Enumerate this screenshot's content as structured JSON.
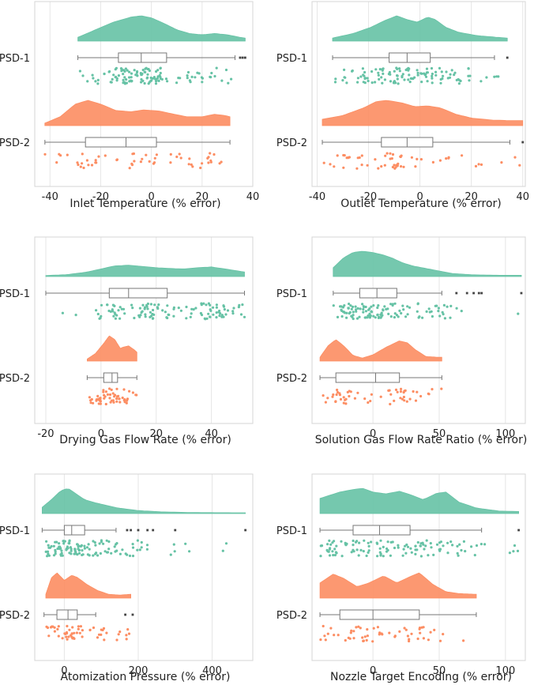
{
  "figure": {
    "colors": {
      "psd1": "#66c2a5",
      "psd2": "#fc8d62",
      "grid": "#e6e6e6",
      "frame": "#d5d5d5",
      "box": "#777777"
    }
  },
  "chart_data": [
    {
      "type": "raincloud",
      "xlabel": "Inlet Temperature (% error)",
      "xlim": [
        -46,
        40
      ],
      "xticks": [
        -40,
        -20,
        0,
        20,
        40
      ],
      "categories": [
        "PSD-1",
        "PSD-2"
      ],
      "series": [
        {
          "name": "PSD-1",
          "min": -29,
          "q1": -13,
          "median": -4,
          "q3": 6,
          "max": 33,
          "outliers": [
            35,
            36,
            37
          ],
          "density": [
            [
              -29,
              0.15
            ],
            [
              -22,
              0.45
            ],
            [
              -15,
              0.75
            ],
            [
              -8,
              0.95
            ],
            [
              -4,
              1.0
            ],
            [
              0,
              0.92
            ],
            [
              5,
              0.7
            ],
            [
              10,
              0.45
            ],
            [
              15,
              0.3
            ],
            [
              20,
              0.25
            ],
            [
              25,
              0.3
            ],
            [
              30,
              0.25
            ],
            [
              35,
              0.15
            ],
            [
              37,
              0.12
            ]
          ]
        },
        {
          "name": "PSD-2",
          "min": -42,
          "q1": -26,
          "median": -10,
          "q3": 2,
          "max": 31,
          "outliers": [],
          "density": [
            [
              -42,
              0.1
            ],
            [
              -36,
              0.35
            ],
            [
              -30,
              0.85
            ],
            [
              -25,
              1.0
            ],
            [
              -20,
              0.85
            ],
            [
              -14,
              0.6
            ],
            [
              -8,
              0.55
            ],
            [
              -3,
              0.62
            ],
            [
              3,
              0.58
            ],
            [
              9,
              0.45
            ],
            [
              14,
              0.35
            ],
            [
              20,
              0.35
            ],
            [
              25,
              0.45
            ],
            [
              29,
              0.4
            ],
            [
              31,
              0.35
            ]
          ]
        }
      ]
    },
    {
      "type": "raincloud",
      "xlabel": "Outlet Temperature (% error)",
      "xlim": [
        -42,
        41
      ],
      "xticks": [
        -40,
        -20,
        0,
        20,
        40
      ],
      "categories": [
        "PSD-1",
        "PSD-2"
      ],
      "series": [
        {
          "name": "PSD-1",
          "min": -34,
          "q1": -12,
          "median": -5,
          "q3": 4,
          "max": 29,
          "outliers": [
            34
          ],
          "density": [
            [
              -34,
              0.12
            ],
            [
              -26,
              0.3
            ],
            [
              -19,
              0.55
            ],
            [
              -14,
              0.8
            ],
            [
              -9,
              1.0
            ],
            [
              -5,
              0.85
            ],
            [
              -1,
              0.75
            ],
            [
              3,
              0.95
            ],
            [
              6,
              0.85
            ],
            [
              10,
              0.55
            ],
            [
              15,
              0.35
            ],
            [
              22,
              0.22
            ],
            [
              30,
              0.15
            ],
            [
              34,
              0.12
            ]
          ]
        },
        {
          "name": "PSD-2",
          "min": -38,
          "q1": -15,
          "median": -5,
          "q3": 5,
          "max": 35,
          "outliers": [
            40
          ],
          "density": [
            [
              -38,
              0.25
            ],
            [
              -30,
              0.4
            ],
            [
              -22,
              0.7
            ],
            [
              -17,
              0.95
            ],
            [
              -13,
              1.0
            ],
            [
              -7,
              0.9
            ],
            [
              -2,
              0.75
            ],
            [
              3,
              0.78
            ],
            [
              8,
              0.7
            ],
            [
              14,
              0.45
            ],
            [
              20,
              0.3
            ],
            [
              28,
              0.22
            ],
            [
              35,
              0.2
            ],
            [
              40,
              0.2
            ]
          ]
        }
      ]
    },
    {
      "type": "raincloud",
      "xlabel": "Drying Gas Flow Rate (% error)",
      "xlim": [
        -24,
        55
      ],
      "xticks": [
        -20,
        0,
        20,
        40
      ],
      "categories": [
        "PSD-1",
        "PSD-2"
      ],
      "series": [
        {
          "name": "PSD-1",
          "min": -20,
          "q1": 3,
          "median": 10,
          "q3": 24,
          "max": 52,
          "outliers": [],
          "density": [
            [
              -20,
              0.04
            ],
            [
              -12,
              0.08
            ],
            [
              -5,
              0.18
            ],
            [
              0,
              0.3
            ],
            [
              5,
              0.42
            ],
            [
              10,
              0.45
            ],
            [
              15,
              0.4
            ],
            [
              20,
              0.35
            ],
            [
              25,
              0.32
            ],
            [
              30,
              0.3
            ],
            [
              35,
              0.35
            ],
            [
              40,
              0.38
            ],
            [
              45,
              0.3
            ],
            [
              52,
              0.18
            ]
          ]
        },
        {
          "name": "PSD-2",
          "min": -5,
          "q1": 1,
          "median": 4,
          "q3": 6,
          "max": 13,
          "outliers": [],
          "density": [
            [
              -5,
              0.08
            ],
            [
              -2,
              0.3
            ],
            [
              1,
              0.7
            ],
            [
              3,
              1.0
            ],
            [
              5,
              0.85
            ],
            [
              7,
              0.5
            ],
            [
              8,
              0.55
            ],
            [
              10,
              0.6
            ],
            [
              12,
              0.45
            ],
            [
              13,
              0.35
            ]
          ]
        }
      ]
    },
    {
      "type": "raincloud",
      "xlabel": "Solution Gas Flow Rate Ratio (% error)",
      "xlim": [
        -46,
        115
      ],
      "xticks": [
        0,
        50,
        100
      ],
      "categories": [
        "PSD-1",
        "PSD-2"
      ],
      "series": [
        {
          "name": "PSD-1",
          "min": -30,
          "q1": -10,
          "median": 3,
          "q3": 18,
          "max": 52,
          "outliers": [
            63,
            71,
            76,
            80,
            82,
            112
          ],
          "density": [
            [
              -30,
              0.35
            ],
            [
              -22,
              0.75
            ],
            [
              -15,
              0.95
            ],
            [
              -8,
              1.0
            ],
            [
              0,
              0.95
            ],
            [
              8,
              0.85
            ],
            [
              15,
              0.72
            ],
            [
              22,
              0.55
            ],
            [
              30,
              0.42
            ],
            [
              40,
              0.32
            ],
            [
              50,
              0.22
            ],
            [
              60,
              0.12
            ],
            [
              75,
              0.07
            ],
            [
              95,
              0.05
            ],
            [
              112,
              0.05
            ]
          ]
        },
        {
          "name": "PSD-2",
          "min": -40,
          "q1": -28,
          "median": 2,
          "q3": 20,
          "max": 52,
          "outliers": [],
          "density": [
            [
              -40,
              0.15
            ],
            [
              -34,
              0.6
            ],
            [
              -28,
              0.85
            ],
            [
              -22,
              0.6
            ],
            [
              -15,
              0.22
            ],
            [
              -8,
              0.12
            ],
            [
              0,
              0.25
            ],
            [
              10,
              0.55
            ],
            [
              20,
              0.8
            ],
            [
              26,
              0.72
            ],
            [
              32,
              0.45
            ],
            [
              40,
              0.18
            ],
            [
              50,
              0.15
            ],
            [
              52,
              0.15
            ]
          ]
        }
      ]
    },
    {
      "type": "raincloud",
      "xlabel": "Atomization Pressure (% error)",
      "xlim": [
        -80,
        510
      ],
      "xticks": [
        0,
        200,
        400
      ],
      "categories": [
        "PSD-1",
        "PSD-2"
      ],
      "series": [
        {
          "name": "PSD-1",
          "min": -60,
          "q1": 0,
          "median": 20,
          "q3": 55,
          "max": 140,
          "outliers": [
            170,
            180,
            200,
            225,
            240,
            300,
            490
          ],
          "density": [
            [
              -60,
              0.25
            ],
            [
              -35,
              0.55
            ],
            [
              -10,
              0.9
            ],
            [
              10,
              1.0
            ],
            [
              30,
              0.8
            ],
            [
              55,
              0.55
            ],
            [
              85,
              0.42
            ],
            [
              115,
              0.32
            ],
            [
              145,
              0.22
            ],
            [
              200,
              0.12
            ],
            [
              260,
              0.07
            ],
            [
              350,
              0.04
            ],
            [
              490,
              0.03
            ]
          ]
        },
        {
          "name": "PSD-2",
          "min": -55,
          "q1": -20,
          "median": 10,
          "q3": 35,
          "max": 85,
          "outliers": [
            165,
            185
          ],
          "density": [
            [
              -50,
              0.15
            ],
            [
              -35,
              0.8
            ],
            [
              -20,
              1.0
            ],
            [
              0,
              0.7
            ],
            [
              20,
              0.9
            ],
            [
              35,
              0.82
            ],
            [
              60,
              0.55
            ],
            [
              90,
              0.3
            ],
            [
              120,
              0.15
            ],
            [
              150,
              0.12
            ],
            [
              180,
              0.15
            ]
          ]
        }
      ]
    },
    {
      "type": "raincloud",
      "xlabel": "Nozzle Target Encoding (% error)",
      "xlim": [
        -46,
        115
      ],
      "xticks": [
        0,
        50,
        100
      ],
      "categories": [
        "PSD-1",
        "PSD-2"
      ],
      "series": [
        {
          "name": "PSD-1",
          "min": -40,
          "q1": -15,
          "median": 5,
          "q3": 28,
          "max": 82,
          "outliers": [
            110
          ],
          "density": [
            [
              -40,
              0.6
            ],
            [
              -25,
              0.85
            ],
            [
              -15,
              0.95
            ],
            [
              -8,
              1.0
            ],
            [
              0,
              0.85
            ],
            [
              10,
              0.78
            ],
            [
              20,
              0.88
            ],
            [
              28,
              0.75
            ],
            [
              38,
              0.55
            ],
            [
              48,
              0.8
            ],
            [
              55,
              0.85
            ],
            [
              65,
              0.45
            ],
            [
              78,
              0.22
            ],
            [
              95,
              0.1
            ],
            [
              110,
              0.08
            ]
          ]
        },
        {
          "name": "PSD-2",
          "min": -40,
          "q1": -25,
          "median": 0,
          "q3": 35,
          "max": 78,
          "outliers": [],
          "density": [
            [
              -40,
              0.6
            ],
            [
              -30,
              0.95
            ],
            [
              -22,
              0.78
            ],
            [
              -12,
              0.45
            ],
            [
              -3,
              0.6
            ],
            [
              8,
              0.88
            ],
            [
              18,
              0.6
            ],
            [
              28,
              0.85
            ],
            [
              35,
              1.0
            ],
            [
              45,
              0.55
            ],
            [
              55,
              0.25
            ],
            [
              65,
              0.18
            ],
            [
              78,
              0.15
            ]
          ]
        }
      ]
    }
  ]
}
